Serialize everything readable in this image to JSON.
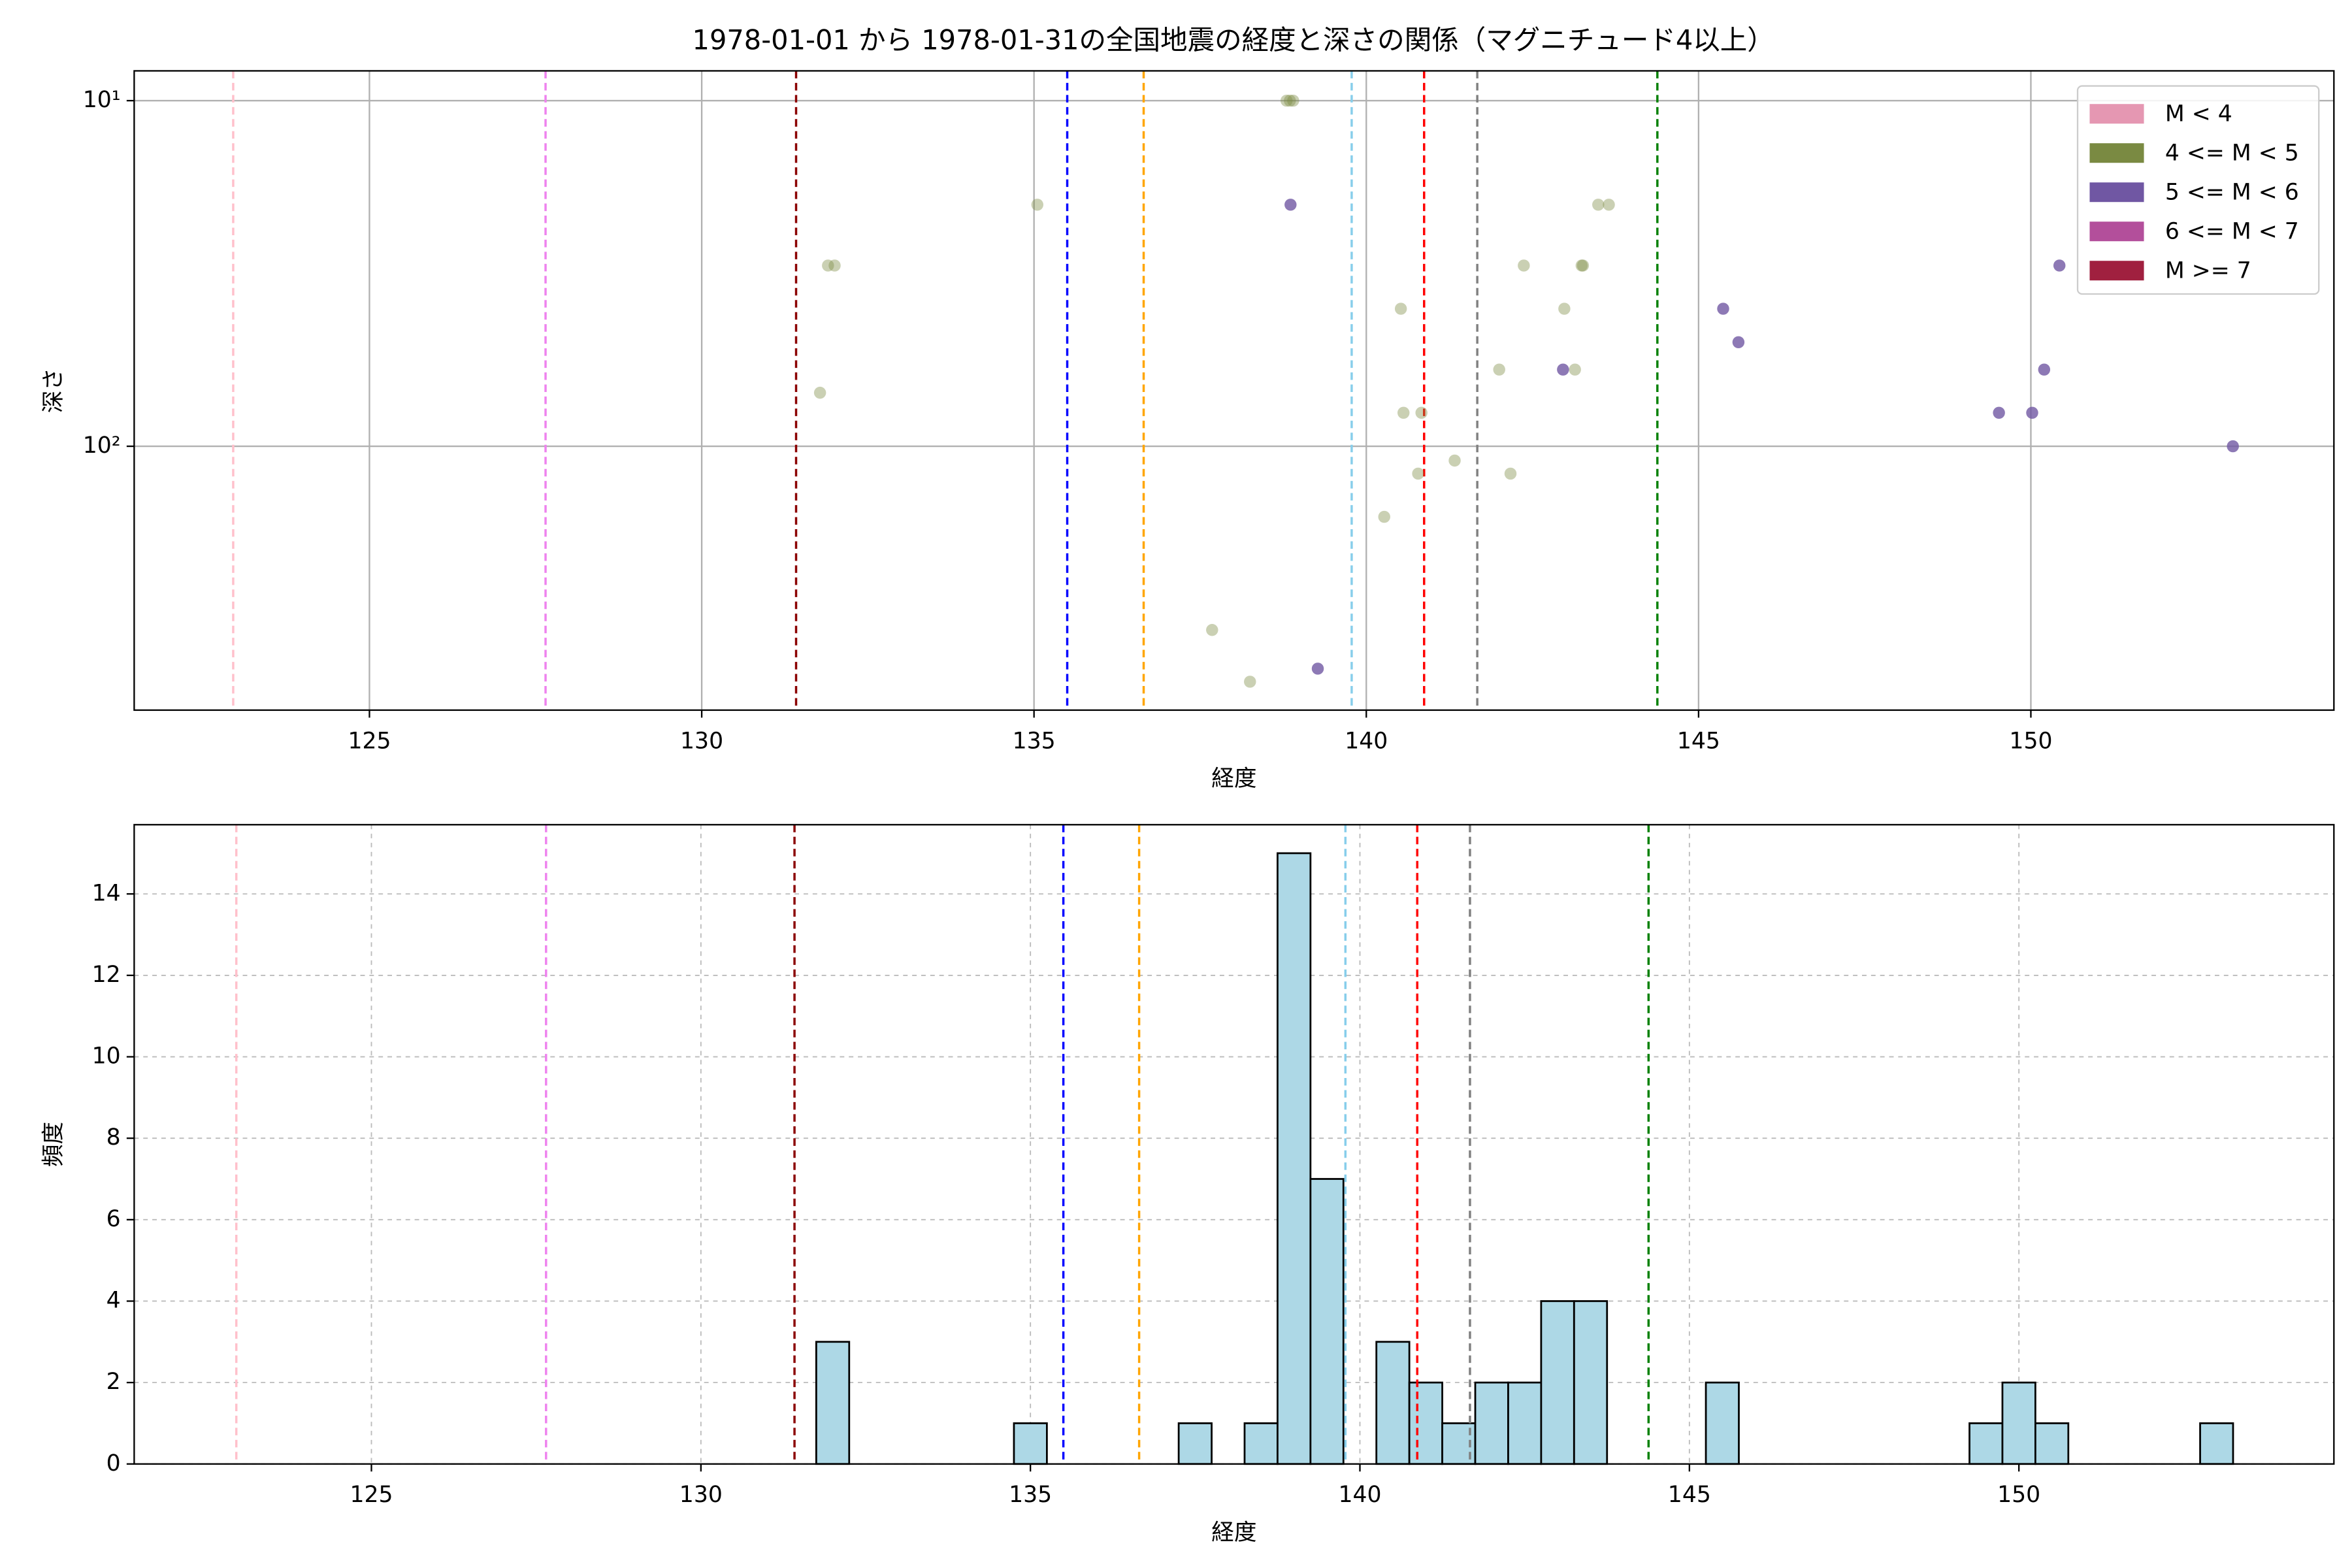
{
  "chart_data": [
    {
      "type": "scatter",
      "title": "1978-01-01 から 1978-01-31の全国地震の経度と深さの関係（マグニチュード4以上）",
      "xlabel": "経度",
      "ylabel": "深さ",
      "xlim": [
        121.46,
        154.56
      ],
      "ylim": [
        580,
        8.2
      ],
      "yscale": "log",
      "xticks": [
        125,
        130,
        135,
        140,
        145,
        150
      ],
      "yticks": [
        {
          "value": 10,
          "label": "10¹"
        },
        {
          "value": 100,
          "label": "10²"
        }
      ],
      "grid": true,
      "legend": "upper right",
      "reference_lines": [
        {
          "x": 122.95,
          "color": "pink"
        },
        {
          "x": 127.65,
          "color": "violet"
        },
        {
          "x": 131.42,
          "color": "darkred"
        },
        {
          "x": 135.5,
          "color": "blue"
        },
        {
          "x": 136.65,
          "color": "orange"
        },
        {
          "x": 139.78,
          "color": "skyblue"
        },
        {
          "x": 140.87,
          "color": "red"
        },
        {
          "x": 141.67,
          "color": "gray"
        },
        {
          "x": 144.38,
          "color": "green"
        }
      ],
      "series": [
        {
          "name": "M < 4",
          "color": "#e597b2",
          "x": [],
          "values": []
        },
        {
          "name": "4 <= M < 5",
          "color": "#7a8a42",
          "x": [
            138.8,
            138.85,
            138.9,
            135.05,
            131.9,
            132.0,
            131.78,
            137.68,
            138.25,
            140.27,
            140.52,
            140.56,
            140.83,
            140.78,
            141.33,
            142.0,
            142.17,
            142.37,
            142.98,
            143.14,
            143.24,
            143.26,
            143.49,
            143.65
          ],
          "values": [
            10,
            10,
            10,
            20,
            30,
            30,
            70,
            340,
            480,
            160,
            40,
            80,
            80,
            120,
            110,
            60,
            120,
            30,
            40,
            60,
            30,
            30,
            20,
            20
          ]
        },
        {
          "name": "5 <= M < 6",
          "color": "#7057a3",
          "x": [
            138.86,
            139.27,
            142.96,
            145.37,
            145.6,
            149.52,
            150.02,
            150.2,
            150.43,
            153.04
          ],
          "values": [
            20,
            440,
            60,
            40,
            50,
            80,
            80,
            60,
            30,
            100
          ]
        },
        {
          "name": "6 <= M < 7",
          "color": "#b34f9b",
          "x": [],
          "values": []
        },
        {
          "name": "M >= 7",
          "color": "#a0203f",
          "x": [],
          "values": []
        }
      ]
    },
    {
      "type": "histogram",
      "xlabel": "経度",
      "ylabel": "頻度",
      "xlim": [
        121.4,
        154.78
      ],
      "ylim": [
        0,
        15.7
      ],
      "xticks": [
        125,
        130,
        135,
        140,
        145,
        150
      ],
      "yticks": [
        0,
        2,
        4,
        6,
        8,
        10,
        12,
        14
      ],
      "grid": true,
      "color": "#add8e6",
      "edgecolor": "#000000",
      "reference_lines": [
        {
          "x": 122.95,
          "color": "pink"
        },
        {
          "x": 127.65,
          "color": "violet"
        },
        {
          "x": 131.42,
          "color": "darkred"
        },
        {
          "x": 135.5,
          "color": "blue"
        },
        {
          "x": 136.65,
          "color": "orange"
        },
        {
          "x": 139.78,
          "color": "skyblue"
        },
        {
          "x": 140.87,
          "color": "red"
        },
        {
          "x": 141.67,
          "color": "gray"
        },
        {
          "x": 144.38,
          "color": "green"
        }
      ],
      "bins": [
        131.75,
        132.25,
        132.75,
        133.25,
        133.75,
        134.25,
        134.75,
        135.25,
        135.75,
        136.25,
        136.75,
        137.25,
        137.75,
        138.25,
        138.75,
        139.25,
        139.75,
        140.25,
        140.75,
        141.25,
        141.75,
        142.25,
        142.75,
        143.25,
        143.75,
        144.25,
        144.75,
        145.25,
        145.75,
        146.25,
        146.75,
        147.25,
        147.75,
        148.25,
        148.75,
        149.25,
        149.75,
        150.25,
        150.75,
        151.25,
        151.75,
        152.25,
        152.75,
        153.25
      ],
      "values": [
        3,
        0,
        0,
        0,
        0,
        0,
        1,
        0,
        0,
        0,
        0,
        1,
        0,
        1,
        15,
        7,
        0,
        3,
        2,
        1,
        2,
        2,
        4,
        4,
        0,
        0,
        0,
        2,
        0,
        0,
        0,
        0,
        0,
        0,
        0,
        1,
        2,
        1,
        0,
        0,
        0,
        0,
        1
      ]
    }
  ]
}
